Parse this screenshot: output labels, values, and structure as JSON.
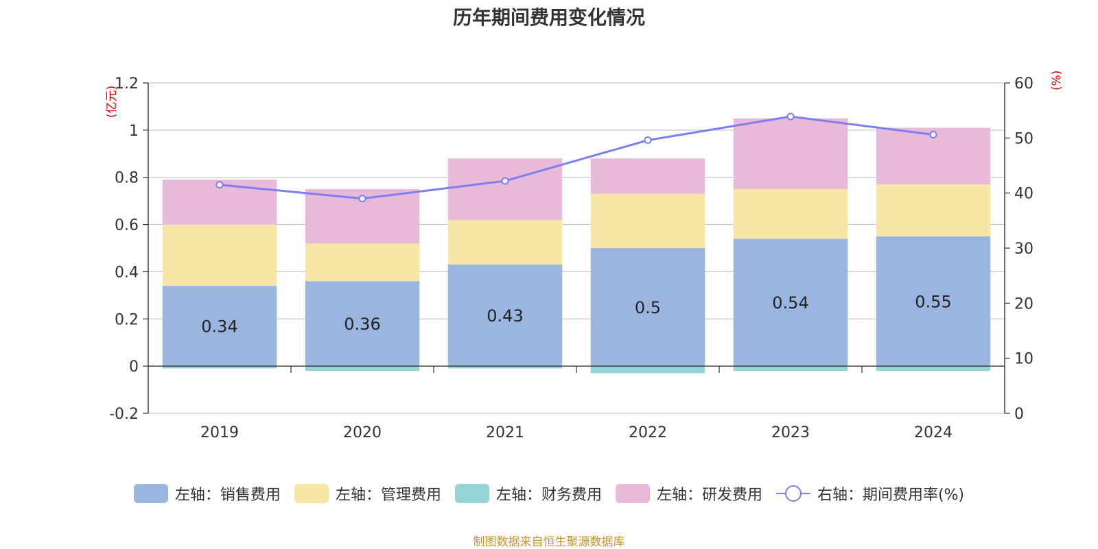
{
  "chart_data": {
    "type": "bar",
    "title": "历年期间费用变化情况",
    "y_left_unit": "(亿元)",
    "y_right_unit": "(%)",
    "categories": [
      "2019",
      "2020",
      "2021",
      "2022",
      "2023",
      "2024"
    ],
    "ylim_left": [
      -0.2,
      1.2
    ],
    "yticks_left": [
      "-0.2",
      "0",
      "0.2",
      "0.4",
      "0.6",
      "0.8",
      "1",
      "1.2"
    ],
    "ylim_right": [
      0,
      60
    ],
    "yticks_right": [
      "0",
      "10",
      "20",
      "30",
      "40",
      "50",
      "60"
    ],
    "grid": true,
    "stacked": true,
    "series": [
      {
        "name": "左轴：销售费用",
        "axis": "left",
        "type": "bar",
        "color": "#9ab5e0",
        "values": [
          0.34,
          0.36,
          0.43,
          0.5,
          0.54,
          0.55
        ],
        "labels": [
          "0.34",
          "0.36",
          "0.43",
          "0.5",
          "0.54",
          "0.55"
        ]
      },
      {
        "name": "左轴：管理费用",
        "axis": "left",
        "type": "bar",
        "color": "#f7e6a6",
        "values": [
          0.26,
          0.16,
          0.19,
          0.23,
          0.21,
          0.22
        ]
      },
      {
        "name": "左轴：财务费用",
        "axis": "left",
        "type": "bar",
        "color": "#96d3d4",
        "values": [
          -0.01,
          -0.02,
          -0.01,
          -0.03,
          -0.02,
          -0.02
        ]
      },
      {
        "name": "左轴：研发费用",
        "axis": "left",
        "type": "bar",
        "color": "#e8b9d9",
        "values": [
          0.19,
          0.23,
          0.26,
          0.15,
          0.3,
          0.24
        ]
      },
      {
        "name": "右轴：期间费用率(%)",
        "axis": "right",
        "type": "line",
        "color": "#7b7ff0",
        "values": [
          41.5,
          39,
          42.2,
          49.6,
          53.9,
          50.6
        ]
      }
    ],
    "legend_position": "bottom"
  },
  "footer": {
    "source": "制图数据来自恒生聚源数据库"
  }
}
